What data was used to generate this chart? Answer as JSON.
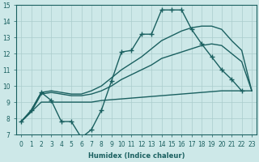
{
  "background_color": "#cde8e8",
  "grid_color": "#aacccc",
  "line_color": "#1a6060",
  "xlabel": "Humidex (Indice chaleur)",
  "ylim": [
    7,
    15
  ],
  "xlim": [
    -0.5,
    23.5
  ],
  "yticks": [
    7,
    8,
    9,
    10,
    11,
    12,
    13,
    14,
    15
  ],
  "xticks": [
    0,
    1,
    2,
    3,
    4,
    5,
    6,
    7,
    8,
    9,
    10,
    11,
    12,
    13,
    14,
    15,
    16,
    17,
    18,
    19,
    20,
    21,
    22,
    23
  ],
  "series": [
    {
      "x": [
        0,
        1,
        2,
        3,
        4,
        5,
        6,
        7,
        8,
        9,
        10,
        11,
        12,
        13,
        14,
        15,
        16,
        17,
        18,
        19,
        20,
        21,
        22
      ],
      "y": [
        7.8,
        8.5,
        9.6,
        9.1,
        7.8,
        7.8,
        6.8,
        7.3,
        8.5,
        10.3,
        12.1,
        12.2,
        13.2,
        13.2,
        14.7,
        14.7,
        14.7,
        13.5,
        12.6,
        11.8,
        11.0,
        10.4,
        9.7
      ],
      "marker": "+",
      "markersize": 4,
      "linewidth": 1.0,
      "zorder": 3
    },
    {
      "x": [
        0,
        1,
        2,
        3,
        4,
        5,
        6,
        7,
        8,
        9,
        10,
        11,
        12,
        13,
        14,
        15,
        16,
        17,
        18,
        19,
        20,
        21,
        22,
        23
      ],
      "y": [
        7.8,
        8.4,
        9.0,
        9.0,
        9.0,
        9.0,
        9.0,
        9.0,
        9.1,
        9.15,
        9.2,
        9.25,
        9.3,
        9.35,
        9.4,
        9.45,
        9.5,
        9.55,
        9.6,
        9.65,
        9.7,
        9.7,
        9.7,
        9.7
      ],
      "marker": null,
      "markersize": 0,
      "linewidth": 1.0,
      "zorder": 2
    },
    {
      "x": [
        0,
        1,
        2,
        3,
        4,
        5,
        6,
        7,
        8,
        9,
        10,
        11,
        12,
        13,
        14,
        15,
        16,
        17,
        18,
        19,
        20,
        21,
        22,
        23
      ],
      "y": [
        7.8,
        8.4,
        9.5,
        9.6,
        9.5,
        9.4,
        9.4,
        9.5,
        9.7,
        10.0,
        10.4,
        10.7,
        11.0,
        11.3,
        11.7,
        11.9,
        12.1,
        12.3,
        12.5,
        12.6,
        12.5,
        12.0,
        11.5,
        9.7
      ],
      "marker": null,
      "markersize": 0,
      "linewidth": 1.0,
      "zorder": 2
    },
    {
      "x": [
        0,
        1,
        2,
        3,
        4,
        5,
        6,
        7,
        8,
        9,
        10,
        11,
        12,
        13,
        14,
        15,
        16,
        17,
        18,
        19,
        20,
        21,
        22,
        23
      ],
      "y": [
        7.8,
        8.5,
        9.6,
        9.7,
        9.6,
        9.5,
        9.5,
        9.7,
        10.0,
        10.5,
        11.0,
        11.4,
        11.8,
        12.3,
        12.8,
        13.1,
        13.4,
        13.6,
        13.7,
        13.7,
        13.5,
        12.8,
        12.2,
        9.7
      ],
      "marker": null,
      "markersize": 0,
      "linewidth": 1.0,
      "zorder": 2
    }
  ],
  "xlabel_fontsize": 6,
  "tick_fontsize": 5.5,
  "ylabel_fontsize": 6
}
